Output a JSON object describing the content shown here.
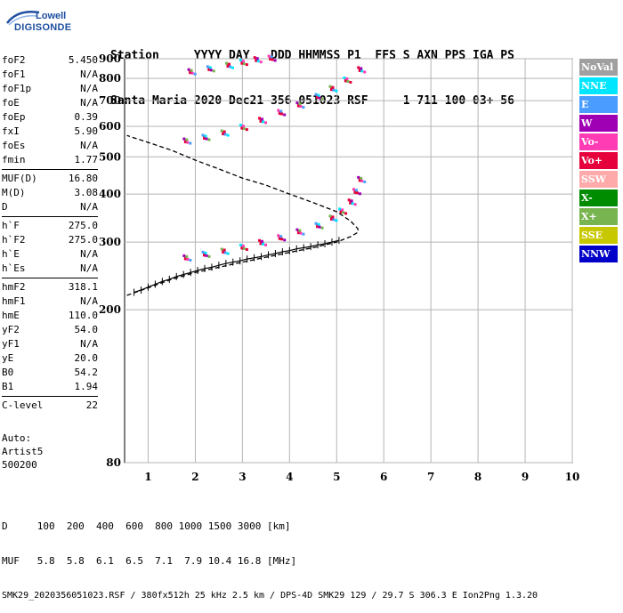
{
  "logo": {
    "line1": "Lowell",
    "line2": "DIGISONDE"
  },
  "header": {
    "line1": "Station     YYYY DAY   DDD HHMMSS P1  FFS S AXN PPS IGA PS",
    "line2": "Santa Maria 2020 Dec21 356 051023 RSF     1 711 100 03+ 56"
  },
  "params": [
    {
      "group": [
        {
          "name": "foF2",
          "value": "5.450"
        },
        {
          "name": "foF1",
          "value": "N/A"
        },
        {
          "name": "foF1p",
          "value": "N/A"
        },
        {
          "name": "foE",
          "value": "N/A"
        },
        {
          "name": "foEp",
          "value": "0.39"
        },
        {
          "name": "fxI",
          "value": "5.90"
        },
        {
          "name": "foEs",
          "value": "N/A"
        },
        {
          "name": "fmin",
          "value": "1.77"
        }
      ]
    },
    {
      "group": [
        {
          "name": "MUF(D)",
          "value": "16.80"
        },
        {
          "name": "M(D)",
          "value": "3.08"
        },
        {
          "name": "D",
          "value": "N/A"
        }
      ]
    },
    {
      "group": [
        {
          "name": "h`F",
          "value": "275.0"
        },
        {
          "name": "h`F2",
          "value": "275.0"
        },
        {
          "name": "h`E",
          "value": "N/A"
        },
        {
          "name": "h`Es",
          "value": "N/A"
        }
      ]
    },
    {
      "group": [
        {
          "name": "hmF2",
          "value": "318.1"
        },
        {
          "name": "hmF1",
          "value": "N/A"
        },
        {
          "name": "hmE",
          "value": "110.0"
        },
        {
          "name": "yF2",
          "value": "54.0"
        },
        {
          "name": "yF1",
          "value": "N/A"
        },
        {
          "name": "yE",
          "value": "20.0"
        },
        {
          "name": "B0",
          "value": "54.2"
        },
        {
          "name": "B1",
          "value": "1.94"
        }
      ]
    },
    {
      "group": [
        {
          "name": "C-level",
          "value": "22"
        }
      ]
    }
  ],
  "auto": {
    "line1": "Auto:",
    "line2": "Artist5",
    "line3": "500200"
  },
  "legend": [
    {
      "label": "NoVal",
      "color": "#a0a0a0"
    },
    {
      "label": "NNE",
      "color": "#00e6ff"
    },
    {
      "label": "E",
      "color": "#4a9cff"
    },
    {
      "label": "W",
      "color": "#a000b4"
    },
    {
      "label": "Vo-",
      "color": "#ff3cb4"
    },
    {
      "label": "Vo+",
      "color": "#e6003c"
    },
    {
      "label": "SSW",
      "color": "#ffaaaa"
    },
    {
      "label": "X-",
      "color": "#008c00"
    },
    {
      "label": "X+",
      "color": "#78b450"
    },
    {
      "label": "SSE",
      "color": "#c8c800"
    },
    {
      "label": "NNW",
      "color": "#0000c8"
    }
  ],
  "chart_data": {
    "type": "scatter",
    "xlim": [
      0.5,
      10
    ],
    "ylim": [
      80,
      900
    ],
    "y_scale": "log",
    "xticks": [
      "1",
      "2",
      "3",
      "4",
      "5",
      "6",
      "7",
      "8",
      "9",
      "10"
    ],
    "yticks": [
      "80",
      "200",
      "300",
      "400",
      "500",
      "600",
      "700",
      "800",
      "900"
    ],
    "grid": true,
    "series": [
      {
        "color": "#e6003c",
        "style": "scatter",
        "x": [
          1.8,
          2.2,
          2.6,
          3.0,
          3.4,
          3.8,
          4.2,
          4.6,
          4.9,
          5.1,
          5.3,
          5.4,
          5.5
        ],
        "y": [
          272,
          278,
          283,
          290,
          298,
          307,
          318,
          330,
          345,
          360,
          380,
          405,
          435
        ]
      },
      {
        "color": "#e6003c",
        "style": "scatter",
        "x": [
          1.8,
          2.2,
          2.6,
          3.0,
          3.4,
          3.8,
          4.2,
          4.6,
          4.9,
          5.2,
          5.5
        ],
        "y": [
          548,
          560,
          575,
          595,
          620,
          650,
          680,
          715,
          750,
          790,
          840
        ]
      },
      {
        "color": "#e6003c",
        "style": "scatter",
        "x": [
          1.9,
          2.3,
          2.7,
          3.0,
          3.3,
          3.6
        ],
        "y": [
          830,
          845,
          862,
          878,
          892,
          900
        ]
      },
      {
        "color": "#000000",
        "style": "dashed",
        "x": [
          0.55,
          1.0,
          1.5,
          2.0,
          2.5,
          3.0,
          3.5,
          4.0,
          4.5,
          5.0,
          5.3,
          5.45,
          5.45,
          5.3,
          5.0,
          4.5,
          4.0,
          3.5,
          3.0,
          2.5,
          2.0,
          1.5,
          1.0,
          0.55
        ],
        "y": [
          218,
          228,
          240,
          250,
          258,
          266,
          274,
          282,
          290,
          300,
          310,
          318,
          325,
          340,
          360,
          380,
          400,
          422,
          440,
          465,
          490,
          520,
          545,
          568
        ]
      },
      {
        "color": "#000000",
        "style": "ticks",
        "x": [
          0.7,
          0.85,
          1.0,
          1.15,
          1.3,
          1.45,
          1.6,
          1.75,
          1.9,
          2.05,
          2.2,
          2.35,
          2.5,
          2.65,
          2.8,
          2.95,
          3.1,
          3.25,
          3.4,
          3.55,
          3.7,
          3.85,
          4.0,
          4.15,
          4.3,
          4.45,
          4.6,
          4.75,
          4.9,
          5.05
        ],
        "y": [
          222,
          225,
          229,
          233,
          237,
          240,
          244,
          247,
          250,
          253,
          256,
          258,
          261,
          264,
          266,
          268,
          271,
          273,
          275,
          278,
          280,
          283,
          285,
          288,
          290,
          292,
          295,
          297,
          300,
          303
        ]
      }
    ]
  },
  "footer": {
    "line1": "D     100  200  400  600  800 1000 1500 3000 [km]",
    "line2": "MUF   5.8  5.8  6.1  6.5  7.1  7.9 10.4 16.8 [MHz]",
    "line3": "SMK29_2020356051023.RSF / 380fx512h 25 kHz 2.5 km / DPS-4D SMK29 129 / 29.7 S 306.3 E Ion2Png 1.3.20"
  }
}
